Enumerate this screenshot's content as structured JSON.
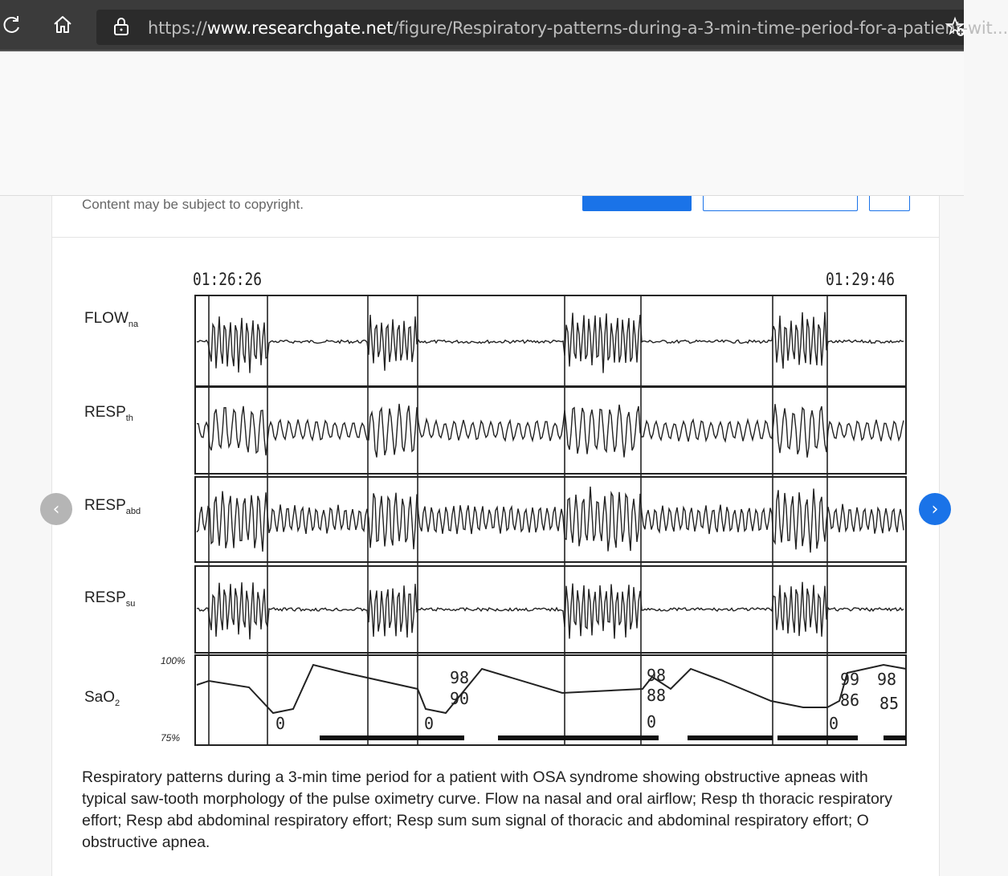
{
  "browser": {
    "url_prefix": "https://",
    "url_host": "www.researchgate.net",
    "url_path": "/figure/Respiratory-patterns-during-a-3-min-time-period-for-a-patient-wit...",
    "icons": [
      "reload-icon",
      "home-icon",
      "lock-icon",
      "favorite-add-icon"
    ]
  },
  "page": {
    "copyright_notice": "Content may be subject to copyright."
  },
  "figure": {
    "time_start": "01:26:26",
    "time_end": "01:29:46",
    "channels": [
      {
        "label": "FLOW",
        "sub": "na"
      },
      {
        "label": "RESP",
        "sub": "th"
      },
      {
        "label": "RESP",
        "sub": "abd"
      },
      {
        "label": "RESP",
        "sub": "su"
      },
      {
        "label": "SaO",
        "sub": "2"
      }
    ],
    "sao2_top": "100%",
    "sao2_bottom": "75%",
    "annotations": [
      "98",
      "90",
      "98",
      "88",
      "99",
      "98",
      "86",
      "85",
      "0",
      "0",
      "0",
      "0"
    ]
  },
  "caption": "Respiratory patterns during a 3-min time period for a patient with OSA syndrome showing obstructive apneas with typical saw-tooth morphology of the pulse oximetry curve. Flow na nasal and oral airflow; Resp th thoracic respiratory effort; Resp abd abdominal respiratory effort; Resp sum sum signal of thoracic and abdominal respiratory effort; O obstructive apnea.",
  "nav": {
    "prev": "‹",
    "next": "›"
  }
}
